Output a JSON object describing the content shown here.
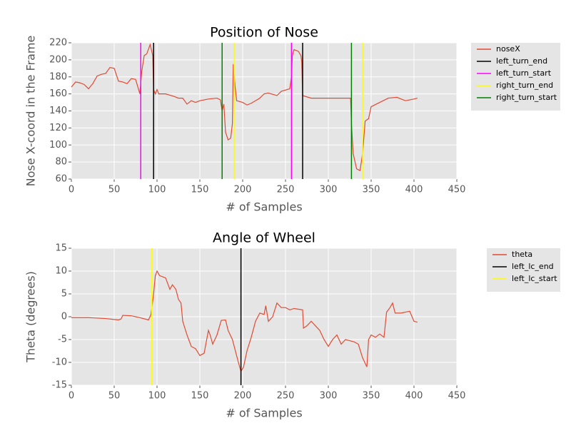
{
  "chart_data": [
    {
      "type": "line",
      "title": "Position of Nose",
      "xlabel": "# of Samples",
      "ylabel": "Nose X-coord in the Frame",
      "xlim": [
        0,
        450
      ],
      "xticks": [
        0,
        50,
        100,
        150,
        200,
        250,
        300,
        350,
        400,
        450
      ],
      "ylim": [
        60,
        220
      ],
      "yticks": [
        60,
        80,
        100,
        120,
        140,
        160,
        180,
        200,
        220
      ],
      "grid": true,
      "legend": "outside upper right",
      "series": [
        {
          "name": "noseX",
          "color": "#e24a33",
          "x": [
            0,
            5,
            10,
            15,
            20,
            25,
            30,
            35,
            40,
            45,
            50,
            55,
            60,
            65,
            70,
            75,
            80,
            82,
            85,
            88,
            92,
            95,
            96,
            98,
            100,
            102,
            110,
            120,
            125,
            130,
            135,
            140,
            145,
            150,
            160,
            170,
            174,
            176,
            178,
            180,
            183,
            186,
            188,
            189,
            191,
            193,
            200,
            205,
            210,
            220,
            225,
            230,
            240,
            245,
            255,
            257,
            258,
            260,
            265,
            268,
            269,
            270,
            280,
            290,
            300,
            310,
            320,
            326,
            327,
            329,
            333,
            337,
            340,
            343,
            347,
            350,
            360,
            370,
            380,
            390,
            400,
            404
          ],
          "values": [
            168,
            174,
            173,
            171,
            166,
            172,
            181,
            183,
            184,
            191,
            190,
            175,
            174,
            172,
            178,
            177,
            160,
            185,
            205,
            207,
            218,
            205,
            165,
            160,
            165,
            160,
            160,
            157,
            155,
            155,
            148,
            152,
            150,
            152,
            154,
            155,
            153,
            140,
            148,
            115,
            106,
            108,
            125,
            195,
            170,
            152,
            150,
            147,
            149,
            155,
            160,
            161,
            158,
            163,
            166,
            180,
            205,
            212,
            210,
            205,
            197,
            158,
            155,
            155,
            155,
            155,
            155,
            155,
            125,
            90,
            72,
            70,
            90,
            128,
            131,
            145,
            150,
            155,
            156,
            152,
            154,
            155
          ]
        }
      ],
      "vlines": [
        {
          "name": "left_turn_end",
          "color": "#000000",
          "x": [
            96,
            270
          ]
        },
        {
          "name": "left_turn_start",
          "color": "#ff00ff",
          "x": [
            81,
            257
          ]
        },
        {
          "name": "right_turn_end",
          "color": "#ffff00",
          "x": [
            190,
            340
          ]
        },
        {
          "name": "right_turn_start",
          "color": "#008000",
          "x": [
            176,
            327
          ]
        }
      ]
    },
    {
      "type": "line",
      "title": "Angle of Wheel",
      "xlabel": "# of Samples",
      "ylabel": "Theta (degrees)",
      "xlim": [
        0,
        450
      ],
      "xticks": [
        0,
        50,
        100,
        150,
        200,
        250,
        300,
        350,
        400,
        450
      ],
      "ylim": [
        -15,
        15
      ],
      "yticks": [
        -15,
        -10,
        -5,
        0,
        5,
        10,
        15
      ],
      "grid": true,
      "legend": "outside upper right",
      "series": [
        {
          "name": "theta",
          "color": "#e24a33",
          "x": [
            0,
            20,
            40,
            55,
            58,
            60,
            70,
            80,
            90,
            93,
            96,
            98,
            100,
            103,
            110,
            115,
            118,
            122,
            125,
            128,
            130,
            135,
            140,
            145,
            150,
            155,
            160,
            162,
            165,
            170,
            175,
            180,
            183,
            188,
            195,
            198,
            201,
            205,
            210,
            215,
            220,
            225,
            227,
            230,
            235,
            240,
            245,
            250,
            255,
            260,
            270,
            271,
            275,
            280,
            285,
            290,
            295,
            300,
            305,
            310,
            315,
            320,
            330,
            335,
            340,
            345,
            347,
            350,
            355,
            360,
            365,
            368,
            372,
            375,
            378,
            385,
            390,
            395,
            400,
            404
          ],
          "values": [
            -0.2,
            -0.2,
            -0.4,
            -0.7,
            -0.5,
            0.3,
            0.2,
            -0.2,
            -0.7,
            0.5,
            5,
            9,
            10,
            9,
            8.5,
            6,
            7,
            6,
            3.8,
            3,
            -1,
            -4,
            -6.5,
            -7,
            -8.5,
            -8,
            -3,
            -4,
            -6,
            -4,
            -0.8,
            -0.7,
            -3,
            -5,
            -10,
            -12,
            -11,
            -7.5,
            -4.5,
            -1,
            0.8,
            0.5,
            2.4,
            -1,
            0,
            3,
            2,
            2,
            1.5,
            1.8,
            1.5,
            -2.5,
            -2,
            -1,
            -2,
            -3,
            -5,
            -6.5,
            -5,
            -4,
            -6,
            -5,
            -5.5,
            -6,
            -9,
            -11,
            -5,
            -4,
            -4.5,
            -3.8,
            -4.5,
            1,
            2,
            3,
            0.8,
            0.8,
            1,
            1.2,
            -1,
            -1.2
          ]
        }
      ],
      "vlines": [
        {
          "name": "left_lc_end",
          "color": "#000000",
          "x": [
            198
          ]
        },
        {
          "name": "left_lc_start",
          "color": "#ffff00",
          "x": [
            94
          ]
        }
      ]
    }
  ]
}
